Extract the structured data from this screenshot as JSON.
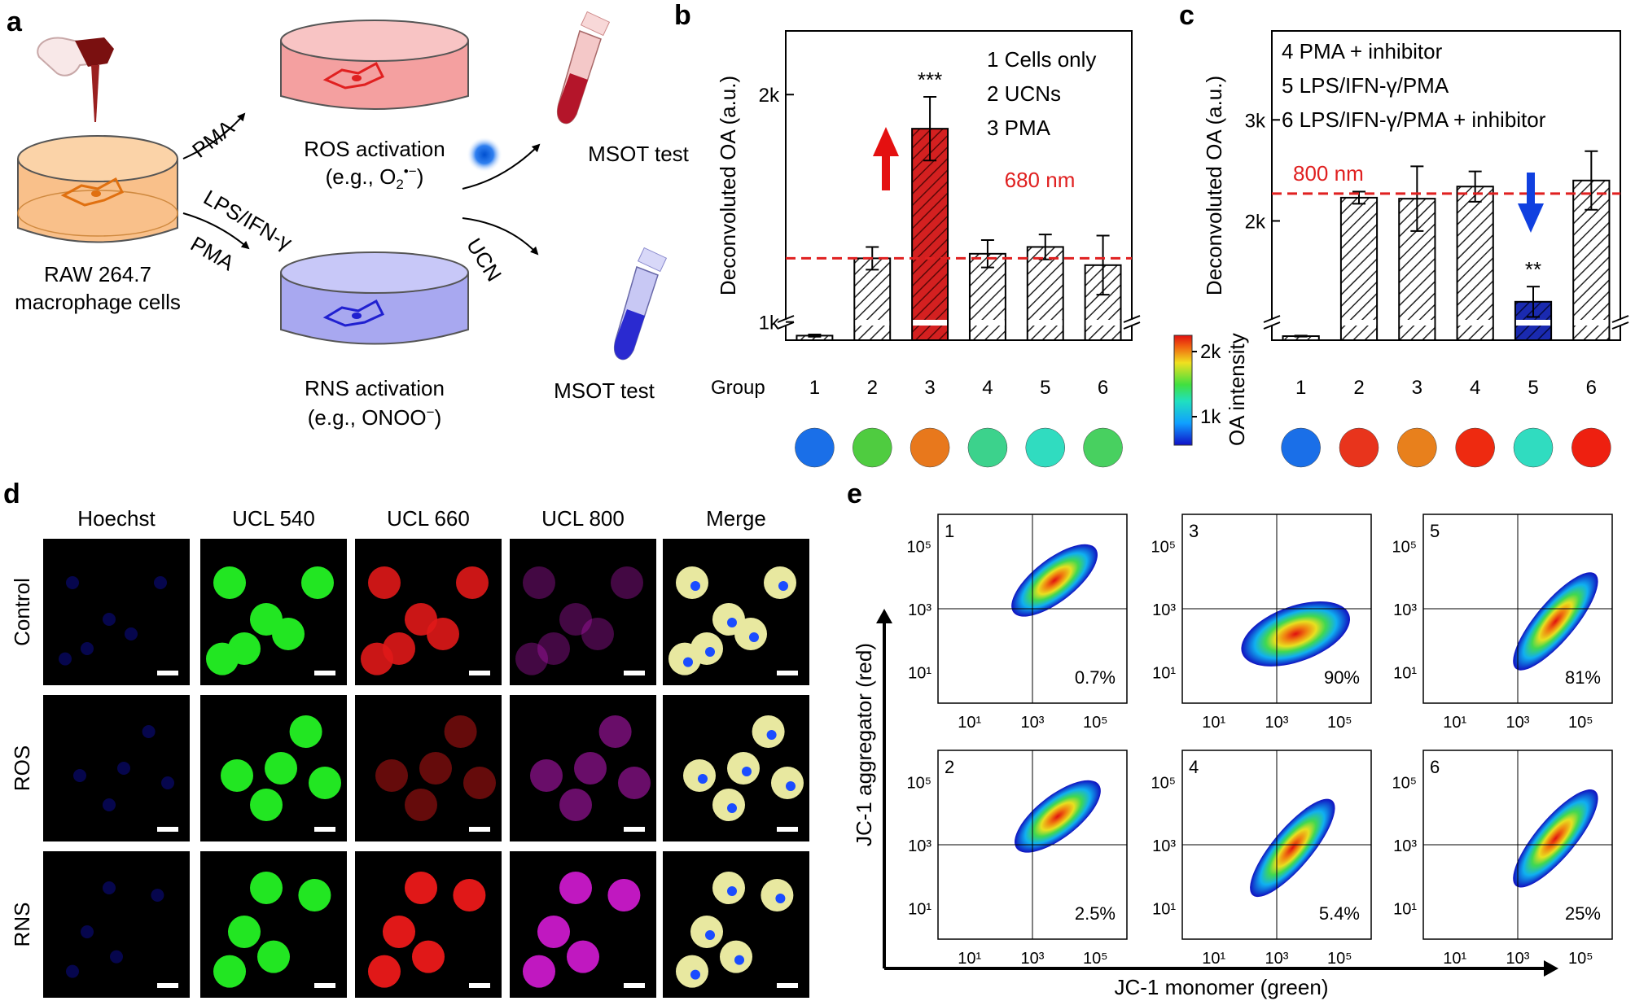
{
  "panel_letters": {
    "a": "a",
    "b": "b",
    "c": "c",
    "d": "d",
    "e": "e"
  },
  "panel_a": {
    "cells_line1": "RAW 264.7",
    "cells_line2": "macrophage cells",
    "arrow_top_label": "PMA",
    "arrow_bottom_label_1": "LPS/IFN-γ",
    "arrow_bottom_label_2": "PMA",
    "ros_title": "ROS activation",
    "ros_example_prefix": "(e.g., O",
    "ros_example_sub": "2",
    "ros_example_sup": "•−",
    "ros_example_suffix": ")",
    "rns_title": "RNS activation",
    "rns_example": "(e.g., ONOO",
    "rns_example_sup": "−",
    "rns_example_suffix": ")",
    "ucn_label": "UCN",
    "msot_top": "MSOT test",
    "msot_bottom": "MSOT test",
    "colors": {
      "orange_dish": "#f9c08a",
      "red_dish": "#f4a0a0",
      "blue_dish": "#a8a8f0",
      "red_tube": "#b4152a",
      "blue_tube": "#2a2ad0"
    }
  },
  "colorbar": {
    "label": "OA intensity",
    "tick_high": "2k",
    "tick_low": "1k"
  },
  "chart_data": [
    {
      "id": "b",
      "type": "bar",
      "ylabel": "Deconvoluted OA (a.u.)",
      "xlabel": "Group",
      "categories": [
        "1",
        "2",
        "3",
        "4",
        "5",
        "6"
      ],
      "values": [
        940,
        1280,
        1850,
        1300,
        1330,
        1250
      ],
      "errors": [
        5,
        50,
        140,
        60,
        55,
        130
      ],
      "ylim": [
        920,
        2280
      ],
      "yticks": [
        {
          "v": 1000,
          "label": "1k"
        },
        {
          "v": 2000,
          "label": "2k"
        }
      ],
      "axis_break": true,
      "highlight_index": 2,
      "highlight_color": "#d42020",
      "threshold": {
        "value": 1280,
        "color": "#e02020",
        "label": "680 nm"
      },
      "significance": {
        "index": 2,
        "label": "***"
      },
      "arrow": {
        "index": 2,
        "direction": "up",
        "color": "#e41010"
      },
      "legend": [
        "1 Cells only",
        "2 UCNs",
        "3 PMA"
      ],
      "legend_placement": "top-right",
      "spot_colors": [
        "#1a6fe8",
        "#4fcc40",
        "#e8781c",
        "#3cd28c",
        "#30dcc0",
        "#48d060"
      ]
    },
    {
      "id": "c",
      "type": "bar",
      "ylabel": "Deconvoluted OA (a.u.)",
      "xlabel": "",
      "categories": [
        "1",
        "2",
        "3",
        "4",
        "5",
        "6"
      ],
      "values": [
        860,
        2230,
        2220,
        2340,
        1200,
        2400
      ],
      "errors": [
        5,
        60,
        320,
        150,
        150,
        290
      ],
      "ylim": [
        820,
        3880
      ],
      "yticks": [
        {
          "v": 2000,
          "label": "2k"
        },
        {
          "v": 3000,
          "label": "3k"
        }
      ],
      "axis_break": true,
      "highlight_index": 4,
      "highlight_color": "#1a2ab0",
      "threshold": {
        "value": 2270,
        "color": "#e02020",
        "label": "800 nm"
      },
      "significance": {
        "index": 4,
        "label": "**"
      },
      "arrow": {
        "index": 4,
        "direction": "down",
        "color": "#1040e0"
      },
      "legend": [
        "4 PMA + inhibitor",
        "5 LPS/IFN-γ/PMA",
        "6 LPS/IFN-γ/PMA + inhibitor"
      ],
      "legend_placement": "top-left",
      "spot_colors": [
        "#1a6fe8",
        "#e8341c",
        "#e8801c",
        "#ee2a10",
        "#30dcc0",
        "#ee2010"
      ]
    },
    {
      "id": "e",
      "type": "scatter",
      "title": "",
      "xlabel": "JC-1 monomer (green)",
      "ylabel": "JC-1 aggregator (red)",
      "x_scale": "log",
      "y_scale": "log",
      "tick_labels": [
        "10¹",
        "10³",
        "10⁵"
      ],
      "subplots": [
        {
          "id": "1",
          "percent": "0.7%",
          "cx": 3.7,
          "cy": 3.9,
          "spread": "upper-diagonal"
        },
        {
          "id": "3",
          "percent": "90%",
          "cx": 3.6,
          "cy": 2.2,
          "spread": "lower-right"
        },
        {
          "id": "5",
          "percent": "81%",
          "cx": 4.2,
          "cy": 2.6,
          "spread": "diagonal"
        },
        {
          "id": "2",
          "percent": "2.5%",
          "cx": 3.8,
          "cy": 3.9,
          "spread": "upper-diagonal"
        },
        {
          "id": "4",
          "percent": "5.4%",
          "cx": 3.5,
          "cy": 2.9,
          "spread": "diagonal"
        },
        {
          "id": "6",
          "percent": "25%",
          "cx": 4.2,
          "cy": 3.2,
          "spread": "diagonal"
        }
      ]
    }
  ],
  "panel_d": {
    "columns": [
      "Hoechst",
      "UCL 540",
      "UCL 660",
      "UCL 800",
      "Merge"
    ],
    "rows": [
      "Control",
      "ROS",
      "RNS"
    ],
    "channel_colors": [
      "#1414ff",
      "#22e622",
      "#e01818",
      "#c018c0",
      "#e8e8a0"
    ]
  }
}
